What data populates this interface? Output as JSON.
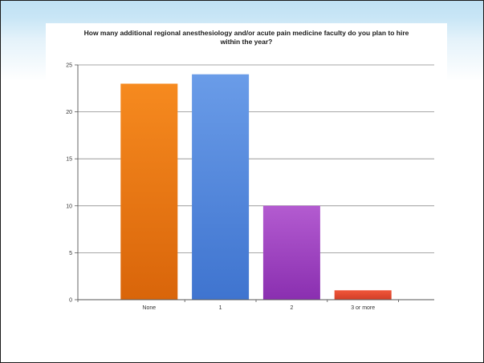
{
  "chart_data": {
    "type": "bar",
    "title": "How many additional regional anesthesiology and/or acute pain medicine faculty do you plan to hire within the year?",
    "categories": [
      "None",
      "1",
      "2",
      "3 or more"
    ],
    "values": [
      23,
      24,
      10,
      1
    ],
    "ylim": [
      0,
      25
    ],
    "yticks": [
      "0",
      "5",
      "10",
      "15",
      "20",
      "25"
    ],
    "grid": true,
    "legend": "none",
    "colors": [
      {
        "top": "#f68a1f",
        "bottom": "#d9650a"
      },
      {
        "top": "#6a9ce8",
        "bottom": "#3f74cf"
      },
      {
        "top": "#b35bd0",
        "bottom": "#8a2fb0"
      },
      {
        "top": "#f0563a",
        "bottom": "#d23e26"
      }
    ]
  }
}
